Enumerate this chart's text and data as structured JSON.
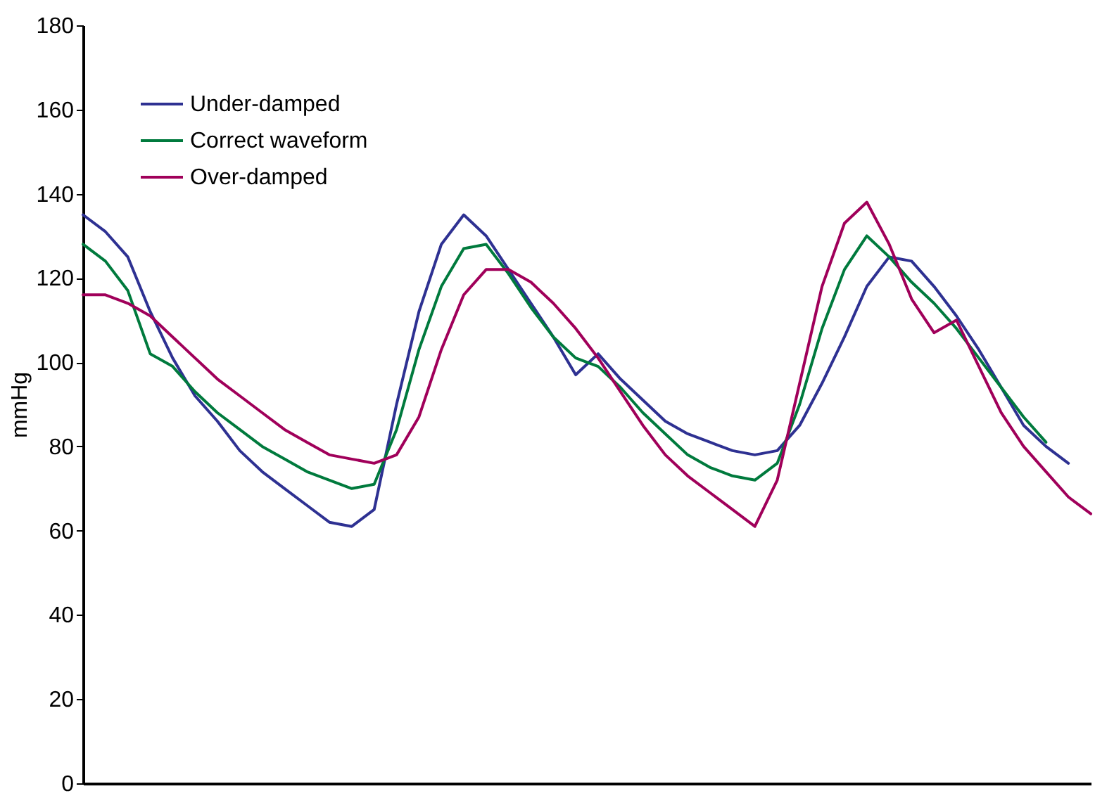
{
  "chart_data": {
    "type": "line",
    "ylabel": "mmHg",
    "categories": [
      null,
      null,
      null,
      null,
      null,
      null,
      null,
      null,
      null,
      null,
      null,
      null,
      null,
      null,
      null,
      null,
      null,
      null,
      null,
      null,
      null,
      null,
      null,
      null,
      null,
      null,
      null,
      null,
      null,
      null,
      null,
      null,
      null,
      null,
      null,
      null,
      null,
      null,
      null,
      null,
      null,
      null,
      null,
      null,
      null,
      null
    ],
    "series": [
      {
        "name": "Under-damped",
        "color": "#2e3192",
        "values": [
          135,
          131,
          125,
          112,
          101,
          92,
          86,
          79,
          74,
          70,
          66,
          62,
          61,
          65,
          90,
          112,
          128,
          135,
          130,
          122,
          114,
          106,
          97,
          102,
          96,
          91,
          86,
          83,
          81,
          79,
          78,
          79,
          85,
          95,
          106,
          118,
          125,
          124,
          118,
          111,
          103,
          94,
          85,
          80,
          76,
          null
        ]
      },
      {
        "name": "Correct waveform",
        "color": "#007a3d",
        "values": [
          128,
          124,
          117,
          102,
          99,
          93,
          88,
          84,
          80,
          77,
          74,
          72,
          70,
          71,
          84,
          103,
          118,
          127,
          128,
          121,
          113,
          106,
          101,
          99,
          94,
          88,
          83,
          78,
          75,
          73,
          72,
          76,
          90,
          108,
          122,
          130,
          125,
          119,
          114,
          108,
          101,
          94,
          87,
          81,
          null,
          null
        ]
      },
      {
        "name": "Over-damped",
        "color": "#a0005a",
        "values": [
          116,
          116,
          114,
          111,
          106,
          101,
          96,
          92,
          88,
          84,
          81,
          78,
          77,
          76,
          78,
          87,
          103,
          116,
          122,
          122,
          119,
          114,
          108,
          101,
          93,
          85,
          78,
          73,
          69,
          65,
          61,
          72,
          95,
          118,
          133,
          138,
          128,
          115,
          107,
          110,
          99,
          88,
          80,
          74,
          68,
          64
        ]
      }
    ],
    "ylim": [
      0,
      180
    ],
    "yticks": [
      0,
      20,
      40,
      60,
      80,
      100,
      120,
      140,
      160,
      180
    ],
    "grid": false,
    "legend": "top left",
    "tick_labels": "y",
    "marker": "none",
    "line_style": "solid"
  }
}
